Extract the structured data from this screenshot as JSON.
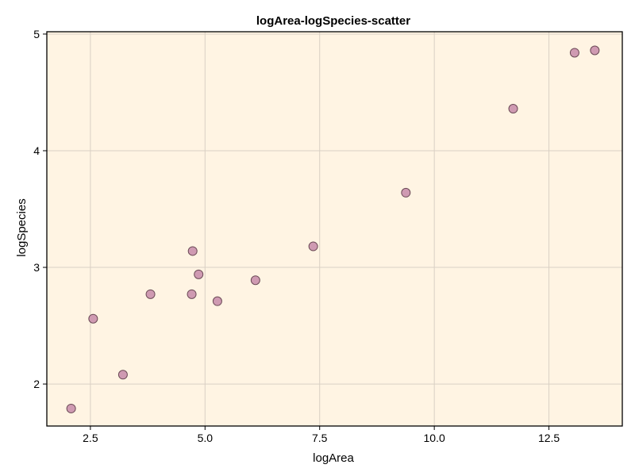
{
  "chart_data": {
    "type": "scatter",
    "title": "logArea-logSpecies-scatter",
    "xlabel": "logArea",
    "ylabel": "logSpecies",
    "xlim": [
      1.55,
      14.1
    ],
    "ylim": [
      1.64,
      5.02
    ],
    "xticks": [
      {
        "value": 2.5,
        "label": "2.5"
      },
      {
        "value": 5.0,
        "label": "5.0"
      },
      {
        "value": 7.5,
        "label": "7.5"
      },
      {
        "value": 10.0,
        "label": "10.0"
      },
      {
        "value": 12.5,
        "label": "12.5"
      }
    ],
    "yticks": [
      {
        "value": 2,
        "label": "2"
      },
      {
        "value": 3,
        "label": "3"
      },
      {
        "value": 4,
        "label": "4"
      },
      {
        "value": 5,
        "label": "5"
      }
    ],
    "grid": true,
    "points": [
      {
        "x": 2.08,
        "y": 1.79
      },
      {
        "x": 2.56,
        "y": 2.56
      },
      {
        "x": 3.21,
        "y": 2.08
      },
      {
        "x": 3.81,
        "y": 2.77
      },
      {
        "x": 4.71,
        "y": 2.77
      },
      {
        "x": 4.73,
        "y": 3.14
      },
      {
        "x": 4.86,
        "y": 2.94
      },
      {
        "x": 5.27,
        "y": 2.71
      },
      {
        "x": 6.1,
        "y": 2.89
      },
      {
        "x": 7.36,
        "y": 3.18
      },
      {
        "x": 9.38,
        "y": 3.64
      },
      {
        "x": 11.72,
        "y": 4.36
      },
      {
        "x": 13.06,
        "y": 4.84
      },
      {
        "x": 13.5,
        "y": 4.86
      }
    ],
    "colors": {
      "plot_background": "#fff4e3",
      "marker_fill": "#cf9ab2",
      "marker_stroke": "#6b4a56",
      "grid": "#d9d0c4",
      "frame": "#000000"
    }
  }
}
